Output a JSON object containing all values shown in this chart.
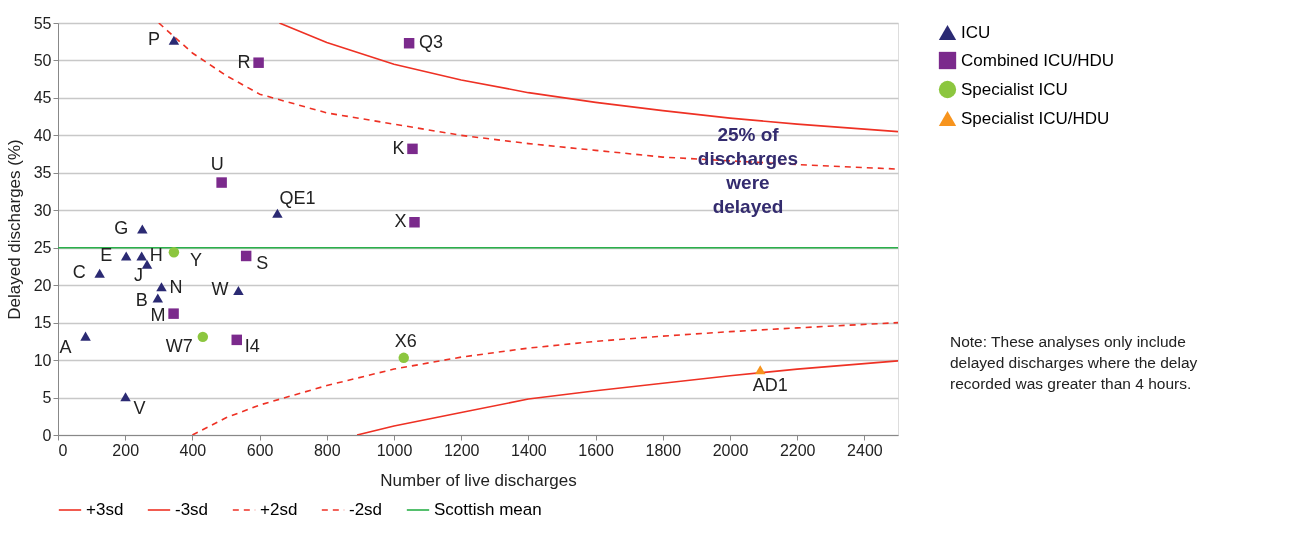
{
  "chart_data": {
    "type": "scatter",
    "xlabel": "Number of live discharges",
    "ylabel": "Delayed discharges (%)",
    "xlim": [
      0,
      2500
    ],
    "xticks": [
      0,
      200,
      400,
      600,
      800,
      1000,
      1200,
      1400,
      1600,
      1800,
      2000,
      2200,
      2400
    ],
    "ylim": [
      0,
      55
    ],
    "yticks": [
      0,
      5,
      10,
      15,
      20,
      25,
      30,
      35,
      40,
      45,
      50,
      55
    ],
    "grid": "y",
    "legend": "right",
    "series": [
      {
        "name": "ICU",
        "type": "scatter",
        "marker": "triangle",
        "color": "#2b2a73",
        "x": [
          345,
          251,
          203,
          249,
          265,
          124,
          308,
          297,
          537,
          653,
          82,
          201
        ],
        "values": [
          52.7,
          27.5,
          23.9,
          23.9,
          22.8,
          21.6,
          19.8,
          18.3,
          19.3,
          29.6,
          13.2,
          5.1
        ]
      },
      {
        "name": "Combined ICU/HDU",
        "type": "scatter",
        "marker": "square",
        "color": "#7b2a8c",
        "x": [
          1045,
          597,
          1055,
          487,
          1061,
          560,
          344,
          532
        ],
        "values": [
          52.3,
          49.7,
          38.2,
          33.7,
          28.4,
          23.9,
          16.2,
          12.7
        ]
      },
      {
        "name": "Specialist ICU",
        "type": "scatter",
        "marker": "circle",
        "color": "#8cc63f",
        "x": [
          345,
          431,
          1029
        ],
        "values": [
          24.4,
          13.1,
          10.3
        ]
      },
      {
        "name": "Specialist ICU/HDU",
        "type": "scatter",
        "marker": "triangle",
        "color": "#f7941d",
        "x": [
          2090
        ],
        "values": [
          8.7
        ]
      },
      {
        "name": "+3sd",
        "type": "line",
        "line_style": "solid",
        "color": "#ee3124",
        "x": [
          659,
          800,
          1000,
          1200,
          1400,
          1600,
          1800,
          2000,
          2200,
          2500
        ],
        "values": [
          55,
          52.4,
          49.5,
          47.4,
          45.7,
          44.4,
          43.3,
          42.3,
          41.5,
          40.5
        ]
      },
      {
        "name": "-3sd",
        "type": "line",
        "line_style": "solid",
        "color": "#ee3124",
        "x": [
          890,
          1000,
          1200,
          1400,
          1600,
          1800,
          2000,
          2200,
          2500
        ],
        "values": [
          0,
          1.2,
          3.0,
          4.8,
          5.9,
          6.9,
          7.9,
          8.8,
          9.9
        ]
      },
      {
        "name": "+2sd",
        "type": "line",
        "line_style": "dashed",
        "color": "#ee3124",
        "x": [
          300,
          400,
          500,
          600,
          800,
          1000,
          1200,
          1400,
          1600,
          1800,
          2000,
          2200,
          2500
        ],
        "values": [
          55,
          51,
          48,
          45.5,
          43,
          41.5,
          40,
          38.9,
          38,
          37.1,
          36.6,
          36.1,
          35.5
        ]
      },
      {
        "name": "-2sd",
        "type": "line",
        "line_style": "dashed",
        "color": "#ee3124",
        "x": [
          400,
          500,
          600,
          800,
          1000,
          1200,
          1400,
          1600,
          1800,
          2000,
          2200,
          2500
        ],
        "values": [
          0,
          2.3,
          4.0,
          6.6,
          8.8,
          10.4,
          11.6,
          12.5,
          13.2,
          13.8,
          14.3,
          15.0
        ]
      }
    ],
    "ref_lines": [
      {
        "axis": "y",
        "value": 25,
        "label": "Scottish mean",
        "color": "#2ab04a"
      }
    ],
    "annotations": [
      {
        "text": "P",
        "x": 345,
        "y": 52.7
      },
      {
        "text": "G",
        "x": 251,
        "y": 27.5
      },
      {
        "text": "E",
        "x": 203,
        "y": 23.9
      },
      {
        "text": "H",
        "x": 249,
        "y": 23.9
      },
      {
        "text": "J",
        "x": 265,
        "y": 22.8
      },
      {
        "text": "C",
        "x": 124,
        "y": 21.6
      },
      {
        "text": "N",
        "x": 308,
        "y": 19.8
      },
      {
        "text": "B",
        "x": 297,
        "y": 18.3
      },
      {
        "text": "W",
        "x": 537,
        "y": 19.3
      },
      {
        "text": "QE1",
        "x": 653,
        "y": 29.6
      },
      {
        "text": "A",
        "x": 82,
        "y": 13.2
      },
      {
        "text": "V",
        "x": 201,
        "y": 5.1
      },
      {
        "text": "Q3",
        "x": 1045,
        "y": 52.3
      },
      {
        "text": "R",
        "x": 597,
        "y": 49.7
      },
      {
        "text": "K",
        "x": 1055,
        "y": 38.2
      },
      {
        "text": "U",
        "x": 487,
        "y": 33.7
      },
      {
        "text": "X",
        "x": 1061,
        "y": 28.4
      },
      {
        "text": "S",
        "x": 560,
        "y": 23.9
      },
      {
        "text": "M",
        "x": 344,
        "y": 16.2
      },
      {
        "text": "I4",
        "x": 532,
        "y": 12.7
      },
      {
        "text": "Y",
        "x": 345,
        "y": 24.4
      },
      {
        "text": "W7",
        "x": 431,
        "y": 13.1
      },
      {
        "text": "X6",
        "x": 1029,
        "y": 10.3
      },
      {
        "text": "AD1",
        "x": 2090,
        "y": 8.7
      },
      "25% of discharges were delayed",
      "Note: These analyses only include delayed discharges where the delay recorded was greater than 4 hours."
    ]
  }
}
